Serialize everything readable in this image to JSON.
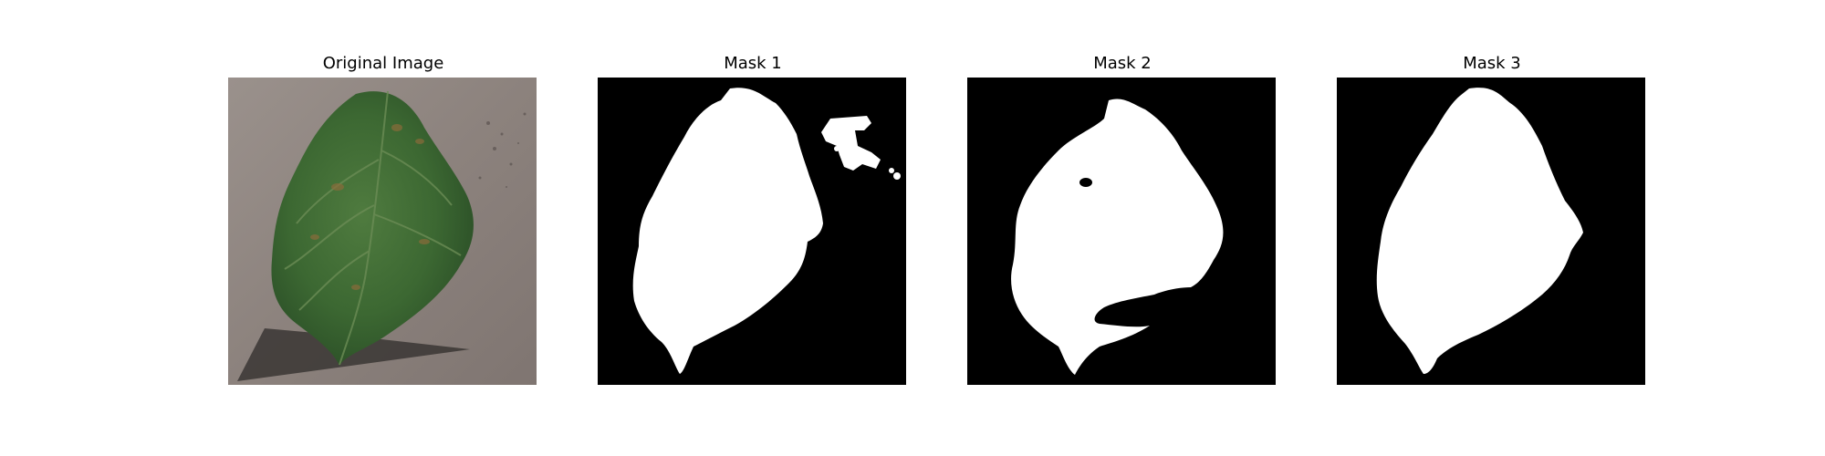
{
  "figure": {
    "panels": [
      {
        "title": "Original Image",
        "content": "leaf-photo"
      },
      {
        "title": "Mask 1",
        "content": "segmentation-mask"
      },
      {
        "title": "Mask 2",
        "content": "segmentation-mask"
      },
      {
        "title": "Mask 3",
        "content": "segmentation-mask"
      }
    ],
    "colors": {
      "background": "#ffffff",
      "mask_background": "#000000",
      "mask_foreground": "#ffffff",
      "ground": "#8a7f7a",
      "leaf": "#3f6b35",
      "shadow": "#3a3634"
    }
  }
}
